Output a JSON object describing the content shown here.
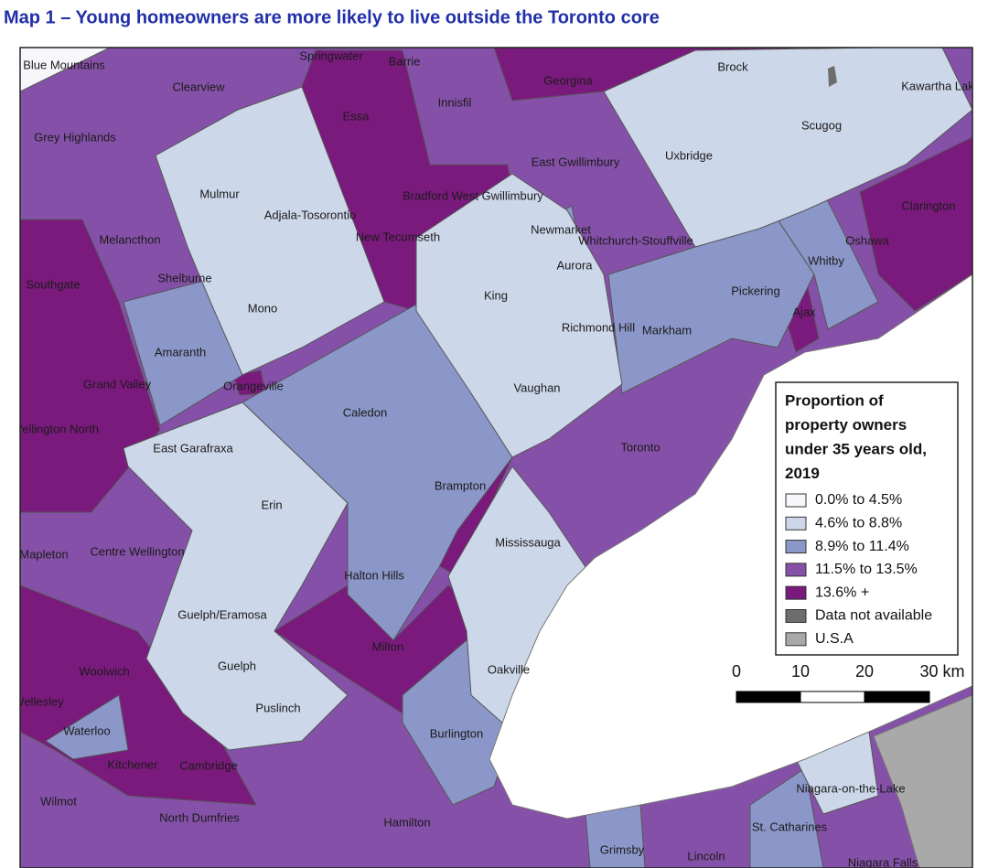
{
  "title": "Map 1 – Young homeowners are more likely to live outside the Toronto core",
  "places": [
    "Blue Mountains",
    "Springwater",
    "Barrie",
    "Clearview",
    "Georgina",
    "Brock",
    "Kawartha Lak",
    "Innisfil",
    "Essa",
    "Grey Highlands",
    "Scugog",
    "East Gwillimbury",
    "Uxbridge",
    "Mulmur",
    "Bradford West Gwillimbury",
    "Adjala-Tosorontio",
    "Clarington",
    "Melancthon",
    "New Tecumseth",
    "Newmarket",
    "Whitchurch-Stouffville",
    "Oshawa",
    "Whitby",
    "Aurora",
    "Shelburne",
    "Southgate",
    "King",
    "Pickering",
    "Mono",
    "Ajax",
    "Richmond Hill",
    "Markham",
    "Amaranth",
    "Grand Valley",
    "Orangeville",
    "Vaughan",
    "Caledon",
    "Wellington North",
    "Toronto",
    "East Garafraxa",
    "Brampton",
    "Erin",
    "Mississauga",
    "Mapleton",
    "Centre Wellington",
    "Halton Hills",
    "Guelph/Eramosa",
    "Milton",
    "Guelph",
    "Oakville",
    "Woolwich",
    "Puslinch",
    "Wellesley",
    "Waterloo",
    "Burlington",
    "Kitchener",
    "Cambridge",
    "Niagara-on-the-Lake",
    "Wilmot",
    "North Dumfries",
    "Hamilton",
    "St. Catharines",
    "Grimsby",
    "Lincoln",
    "Niagara Falls"
  ],
  "legend": {
    "title": [
      "Proportion of",
      "property owners",
      "under 35 years old,",
      "2019"
    ],
    "items": [
      {
        "label": "0.0% to 4.5%",
        "color": "#f7f7fb"
      },
      {
        "label": "4.6% to 8.8%",
        "color": "#cdd7ea"
      },
      {
        "label": "8.9% to 11.4%",
        "color": "#8c97c9"
      },
      {
        "label": "11.5% to 13.5%",
        "color": "#8551a8"
      },
      {
        "label": "13.6% +",
        "color": "#7b1a7d"
      },
      {
        "label": "Data not available",
        "color": "#6d6d6d"
      },
      {
        "label": "U.S.A",
        "color": "#a9a9a9"
      }
    ]
  },
  "scale": {
    "labels": [
      "0",
      "10",
      "20",
      "30 km"
    ]
  }
}
